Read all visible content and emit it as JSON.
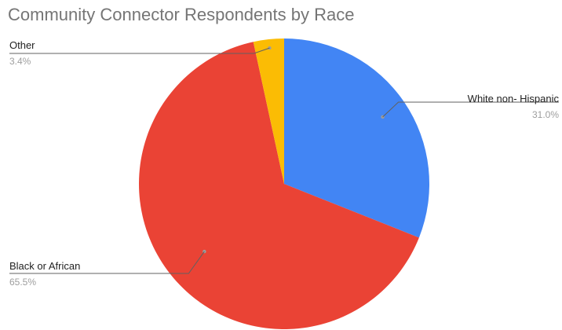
{
  "chart_data": {
    "type": "pie",
    "title": "Community Connector Respondents by Race",
    "start_angle_deg": 0,
    "direction": "clockwise",
    "legend": "none (labels on slices)",
    "slices": [
      {
        "label": "White non- Hispanic",
        "value": 31.0,
        "display": "31.0%",
        "color": "#4285f4"
      },
      {
        "label": "Black or African",
        "value": 65.5,
        "display": "65.5%",
        "color": "#ea4335"
      },
      {
        "label": "Other",
        "value": 3.4,
        "display": "3.4%",
        "color": "#fbbc04"
      }
    ]
  }
}
